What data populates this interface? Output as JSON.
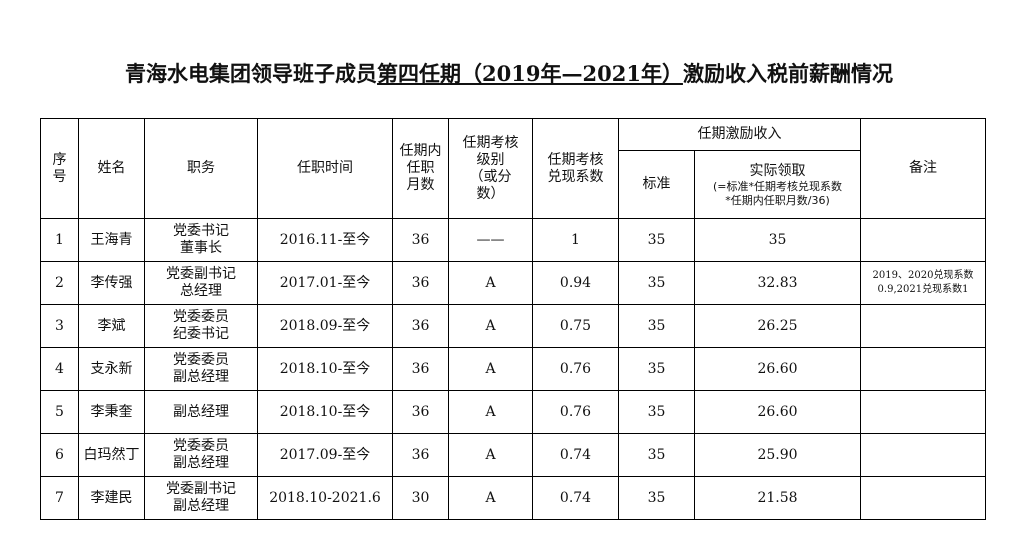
{
  "header": {
    "title": [
      "青海水电集团领导班子成员",
      "第四任期（2019年—2021年）",
      "激励收入税前薪酬情况"
    ]
  },
  "table": {
    "head": {
      "index": [
        "序",
        "号"
      ],
      "name": [
        "姓名"
      ],
      "position": [
        "职务"
      ],
      "tenure": [
        "任职时间"
      ],
      "months": [
        "任期内",
        "任职",
        "月数"
      ],
      "grade": [
        "任期考核",
        "级别",
        "（或分",
        "数）"
      ],
      "coef": [
        "任期考核",
        "兑现系数"
      ],
      "income": [
        "任期激励收入"
      ],
      "standard": [
        "标准"
      ],
      "actual": [
        "实际领取",
        "(=标准*任期考核兑现系数",
        "*任期内任职月数/36)"
      ],
      "note": [
        "备注"
      ]
    },
    "rows": [
      [
        [
          "1"
        ],
        [
          "王海青"
        ],
        [
          "党委书记",
          "董事长"
        ],
        [
          "2016.11-至今"
        ],
        [
          "36"
        ],
        [
          "——"
        ],
        [
          "1"
        ],
        [
          "35"
        ],
        [
          "35"
        ],
        []
      ],
      [
        [
          "2"
        ],
        [
          "李传强"
        ],
        [
          "党委副书记",
          "总经理"
        ],
        [
          "2017.01-至今"
        ],
        [
          "36"
        ],
        [
          "A"
        ],
        [
          "0.94"
        ],
        [
          "35"
        ],
        [
          "32.83"
        ],
        [
          "2019、2020兑现系数",
          "0.9,2021兑现系数1"
        ]
      ],
      [
        [
          "3"
        ],
        [
          "李斌"
        ],
        [
          "党委委员",
          "纪委书记"
        ],
        [
          "2018.09-至今"
        ],
        [
          "36"
        ],
        [
          "A"
        ],
        [
          "0.75"
        ],
        [
          "35"
        ],
        [
          "26.25"
        ],
        []
      ],
      [
        [
          "4"
        ],
        [
          "支永新"
        ],
        [
          "党委委员",
          "副总经理"
        ],
        [
          "2018.10-至今"
        ],
        [
          "36"
        ],
        [
          "A"
        ],
        [
          "0.76"
        ],
        [
          "35"
        ],
        [
          "26.60"
        ],
        []
      ],
      [
        [
          "5"
        ],
        [
          "李秉奎"
        ],
        [
          "副总经理"
        ],
        [
          "2018.10-至今"
        ],
        [
          "36"
        ],
        [
          "A"
        ],
        [
          "0.76"
        ],
        [
          "35"
        ],
        [
          "26.60"
        ],
        []
      ],
      [
        [
          "6"
        ],
        [
          "白玛然丁"
        ],
        [
          "党委委员",
          "副总经理"
        ],
        [
          "2017.09-至今"
        ],
        [
          "36"
        ],
        [
          "A"
        ],
        [
          "0.74"
        ],
        [
          "35"
        ],
        [
          "25.90"
        ],
        []
      ],
      [
        [
          "7"
        ],
        [
          "李建民"
        ],
        [
          "党委副书记",
          "副总经理"
        ],
        [
          "2018.10-2021.6"
        ],
        [
          "30"
        ],
        [
          "A"
        ],
        [
          "0.74"
        ],
        [
          "35"
        ],
        [
          "21.58"
        ],
        []
      ]
    ]
  }
}
